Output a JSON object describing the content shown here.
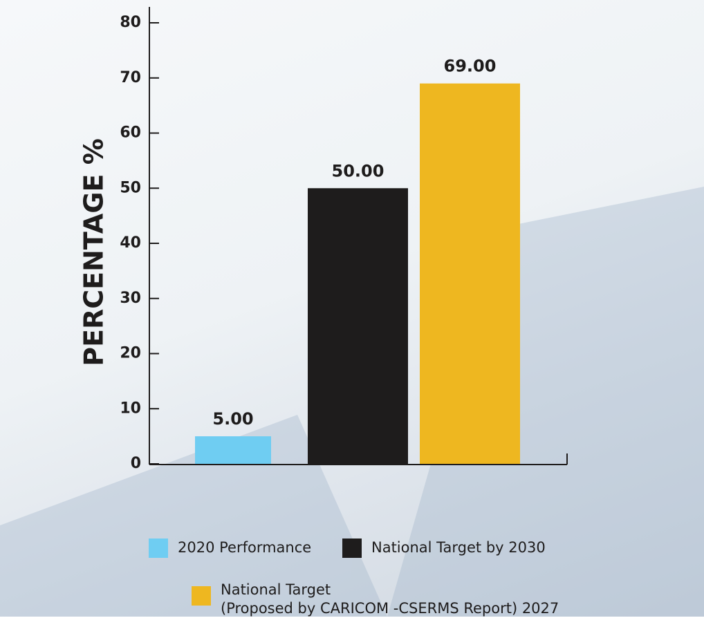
{
  "chart_data": {
    "type": "bar",
    "y_label": "PERCENTAGE %",
    "categories": [
      null
    ],
    "series": [
      {
        "name": "2020 Performance",
        "color": "#6fcdf2",
        "values": [
          5
        ],
        "value_labels": [
          "5.00"
        ]
      },
      {
        "name": "National Target by 2030",
        "color": "#1e1c1c",
        "values": [
          50
        ],
        "value_labels": [
          "50.00"
        ]
      },
      {
        "name": "National Target\n(Proposed by CARICOM -CSERMS Report) 2027",
        "color": "#eeb720",
        "values": [
          69
        ],
        "value_labels": [
          "69.00"
        ]
      }
    ],
    "ylim": [
      0,
      80
    ],
    "yticks": [
      0,
      10,
      20,
      30,
      40,
      50,
      60,
      70,
      80
    ],
    "grid": false
  }
}
